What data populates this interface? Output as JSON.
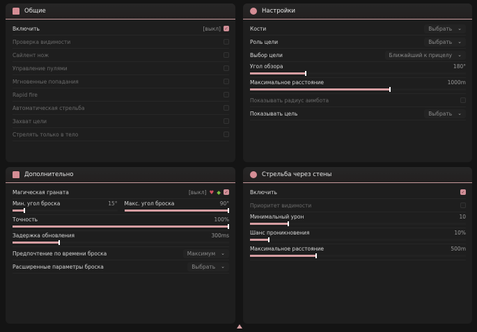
{
  "accent": "#d69ea2",
  "general": {
    "title": "Общие",
    "icon": "person-icon",
    "rows": [
      {
        "label": "Включить",
        "key": "[выкл]",
        "checked": true
      },
      {
        "label": "Проверка видимости",
        "checked": false,
        "dim": true
      },
      {
        "label": "Сайлент нож",
        "checked": false,
        "dim": true
      },
      {
        "label": "Управление пулями",
        "checked": false,
        "dim": true
      },
      {
        "label": "Мгновенные попадания",
        "checked": false,
        "dim": true
      },
      {
        "label": "Rapid fire",
        "checked": false,
        "dim": true
      },
      {
        "label": "Автоматическая стрельба",
        "checked": false,
        "dim": true
      },
      {
        "label": "Захват цели",
        "checked": false,
        "dim": true
      },
      {
        "label": "Стрелять только в тело",
        "checked": false,
        "dim": true
      }
    ]
  },
  "settings": {
    "title": "Настройки",
    "icon": "gear-icon",
    "rows": [
      {
        "type": "select",
        "label": "Кости",
        "value": "Выбрать"
      },
      {
        "type": "select",
        "label": "Роль цели",
        "value": "Выбрать"
      },
      {
        "type": "select",
        "label": "Выбор цели",
        "value": "Ближайший к прицелу"
      },
      {
        "type": "slider",
        "label": "Угол обзора",
        "value": "180°",
        "fraction": 0.26
      },
      {
        "type": "slider",
        "label": "Максимальное расстояние",
        "value": "1000m",
        "fraction": 0.65
      },
      {
        "type": "check",
        "label": "Показывать радиус аимбота",
        "checked": false,
        "dim": true
      },
      {
        "type": "select",
        "label": "Показывать цель",
        "value": "Выбрать"
      }
    ]
  },
  "extra": {
    "title": "Дополнительно",
    "icon": "person-icon",
    "grenade": {
      "label": "Магическая граната",
      "key": "[выкл]",
      "checked": true
    },
    "min_angle": {
      "label": "Мин. угол броска",
      "value": "15°",
      "fraction": 0.12
    },
    "max_angle": {
      "label": "Макс. угол броска",
      "value": "90°",
      "fraction": 1.0
    },
    "rows": [
      {
        "type": "slider",
        "label": "Точность",
        "value": "100%",
        "fraction": 1.0
      },
      {
        "type": "slider",
        "label": "Задержка обновления",
        "value": "300ms",
        "fraction": 0.22
      },
      {
        "type": "select",
        "label": "Предпочтение по времени броска",
        "value": "Максимум"
      },
      {
        "type": "select",
        "label": "Расширенные параметры броска",
        "value": "Выбрать"
      }
    ]
  },
  "walls": {
    "title": "Стрельба через стены",
    "icon": "gear-icon",
    "rows": [
      {
        "type": "check",
        "label": "Включить",
        "checked": true
      },
      {
        "type": "check",
        "label": "Приоритет видимости",
        "checked": false,
        "dim": true
      },
      {
        "type": "slider",
        "label": "Минимальный урон",
        "value": "10",
        "fraction": 0.18
      },
      {
        "type": "slider",
        "label": "Шанс проникновения",
        "value": "10%",
        "fraction": 0.09
      },
      {
        "type": "slider",
        "label": "Максимальное расстояние",
        "value": "500m",
        "fraction": 0.31
      }
    ]
  }
}
